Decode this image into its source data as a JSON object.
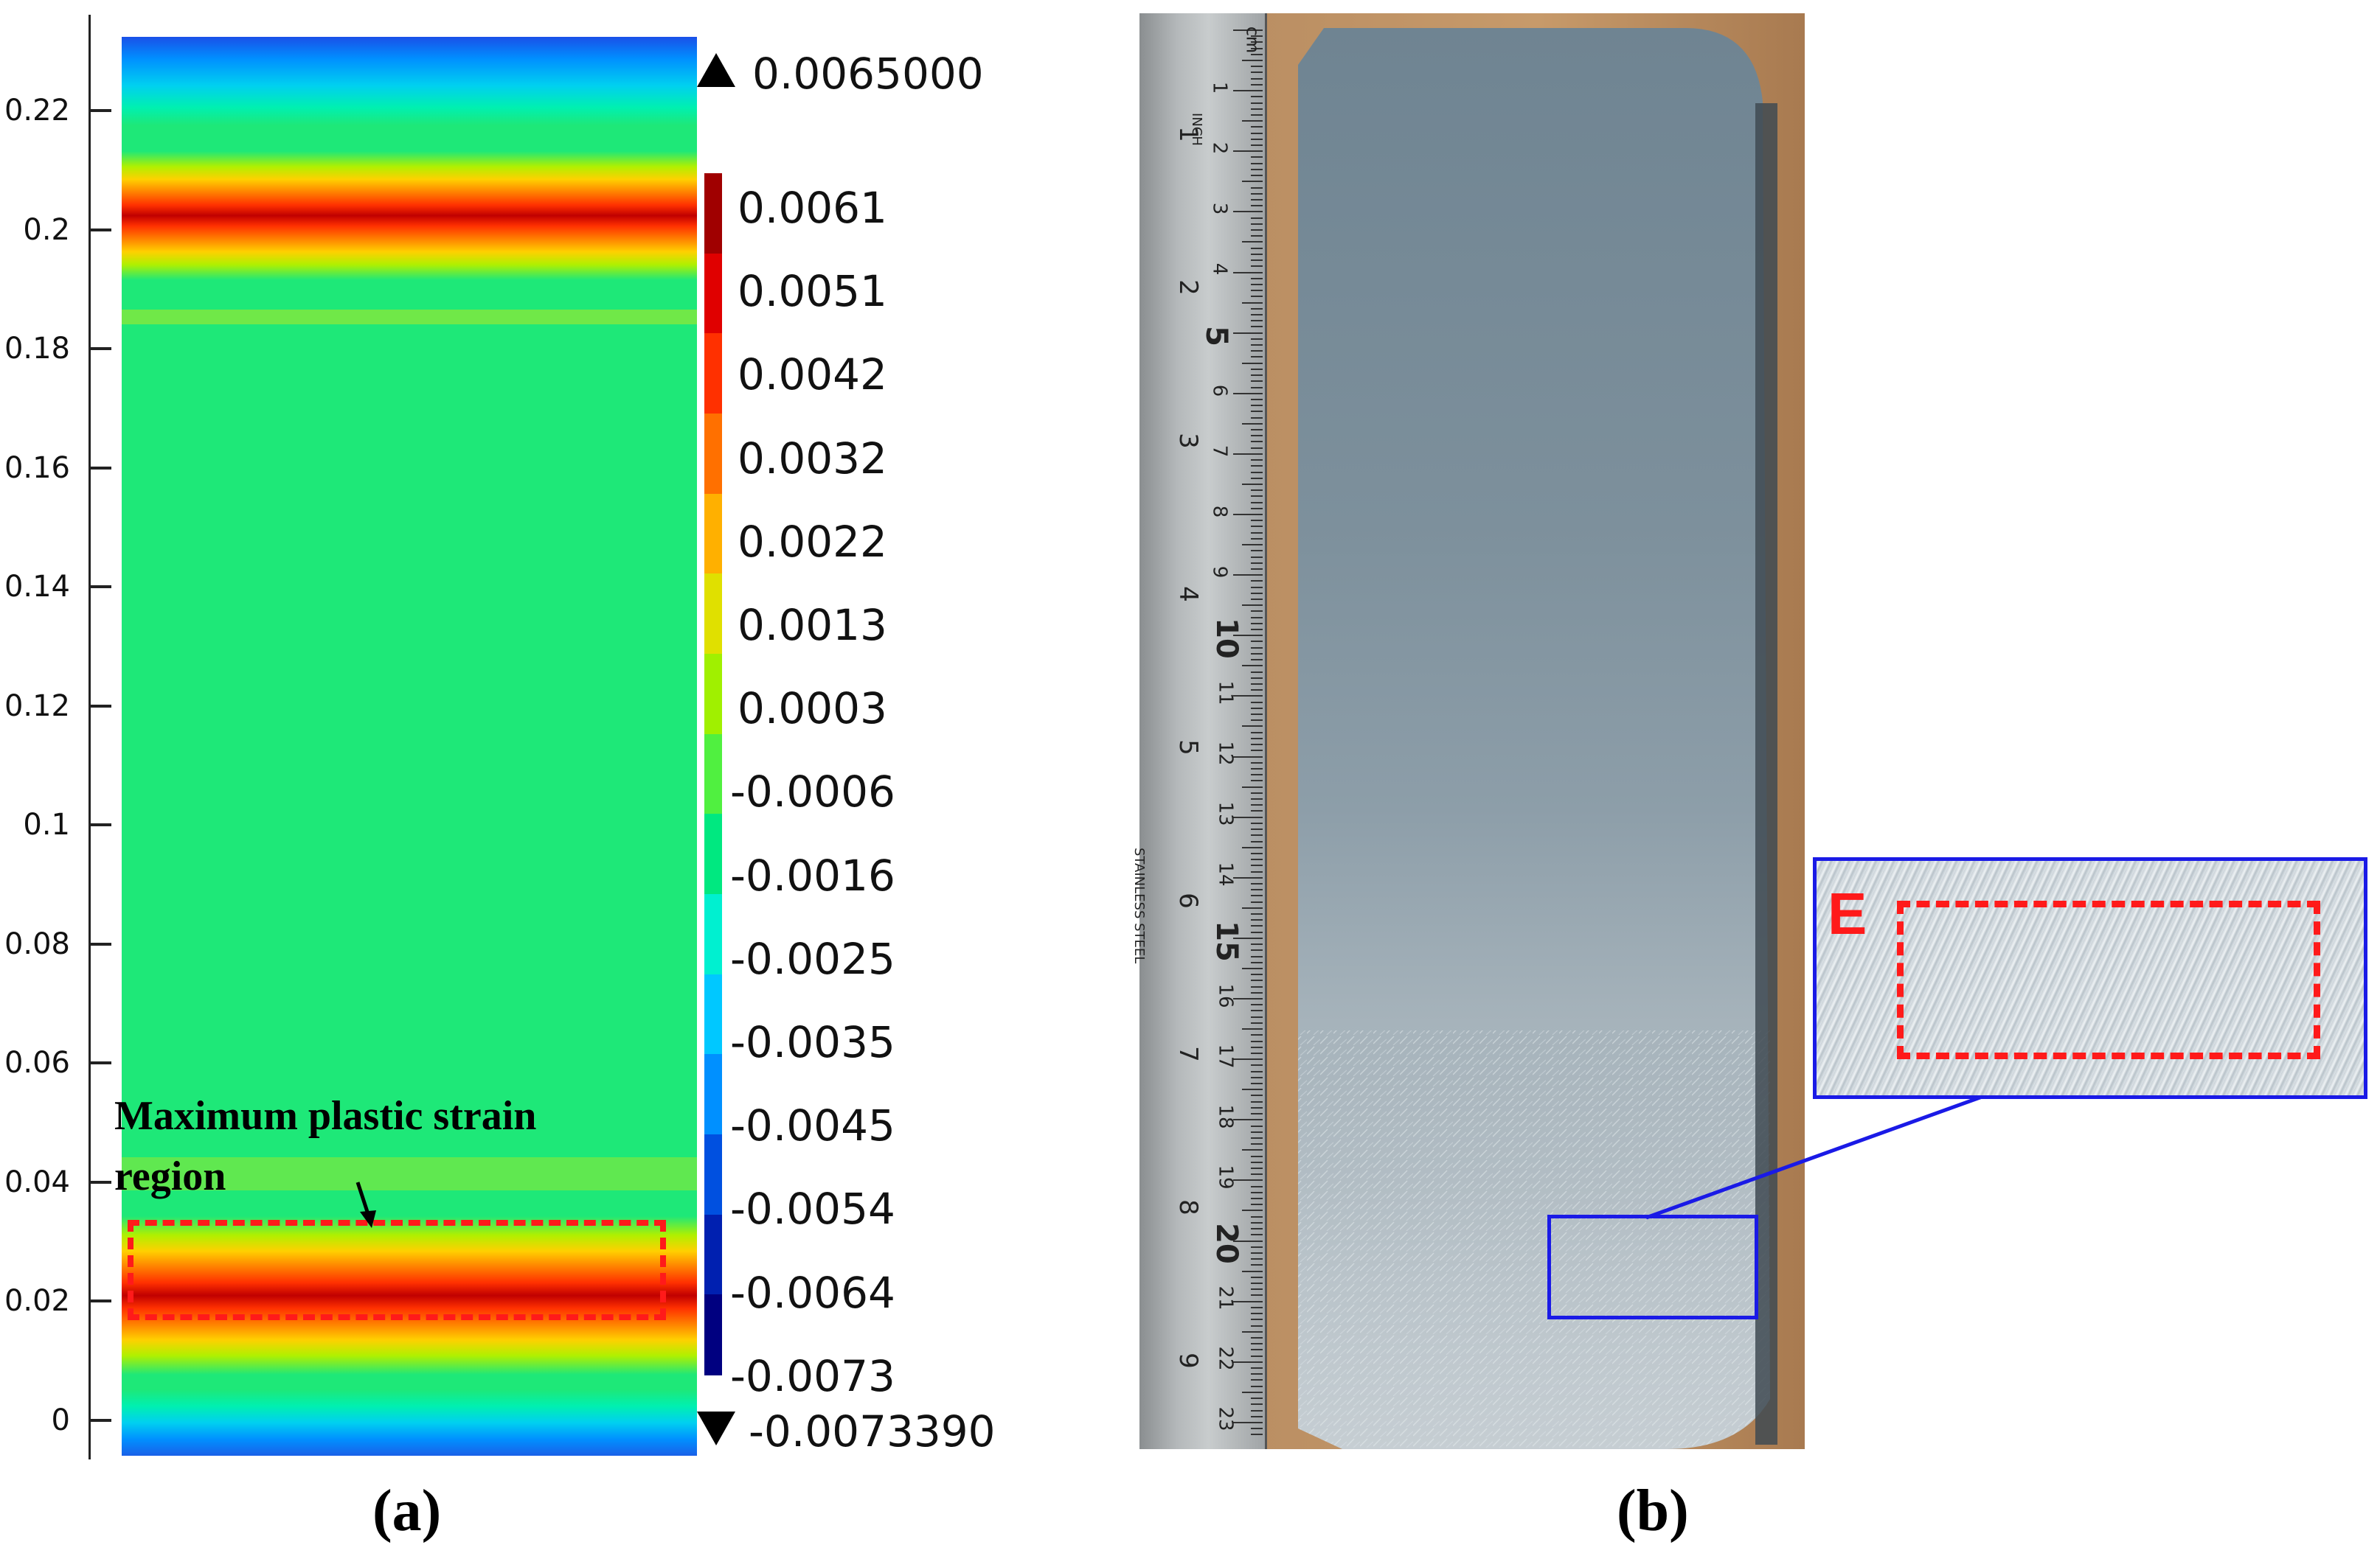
{
  "panel_a": {
    "label": "(a)",
    "y_axis_ticks": [
      "0.22",
      "0.2",
      "0.18",
      "0.16",
      "0.14",
      "0.12",
      "0.1",
      "0.08",
      "0.06",
      "0.04",
      "0.02",
      "0"
    ],
    "annotation_line1": "Maximum plastic strain",
    "annotation_line2": "region",
    "max_value": "0.0065000",
    "min_value": "-0.0073390",
    "colorbar_labels": [
      "0.0061",
      "0.0051",
      "0.0042",
      "0.0032",
      "0.0022",
      "0.0013",
      "0.0003",
      "-0.0006",
      "-0.0016",
      "-0.0025",
      "-0.0035",
      "-0.0045",
      "-0.0054",
      "-0.0064",
      "-0.0073"
    ],
    "colorbar_colors": [
      "#a00000",
      "#e00000",
      "#ff3000",
      "#ff7000",
      "#ffb000",
      "#e0e000",
      "#a0f000",
      "#50f040",
      "#00e880",
      "#00f0d0",
      "#00c8ff",
      "#0090ff",
      "#0050e0",
      "#0020b0",
      "#000080"
    ]
  },
  "panel_b": {
    "label": "(b)",
    "inset_label": "E",
    "ruler_cm": [
      "1",
      "2",
      "3",
      "4",
      "5",
      "6",
      "7",
      "8",
      "9",
      "10",
      "11",
      "12",
      "13",
      "14",
      "15",
      "16",
      "17",
      "18",
      "19",
      "20",
      "21",
      "22",
      "23"
    ],
    "ruler_inch": [
      "1",
      "2",
      "3",
      "4",
      "5",
      "6",
      "7",
      "8",
      "9"
    ],
    "ruler_unit_cm": "cm",
    "ruler_unit_inch": "INCH",
    "ruler_brand": "STAINLESS STEEL"
  },
  "colors": {
    "contour_green": "#1ee878",
    "highlight_red": "#ff1a1a",
    "inset_blue": "#1a1ae6"
  }
}
